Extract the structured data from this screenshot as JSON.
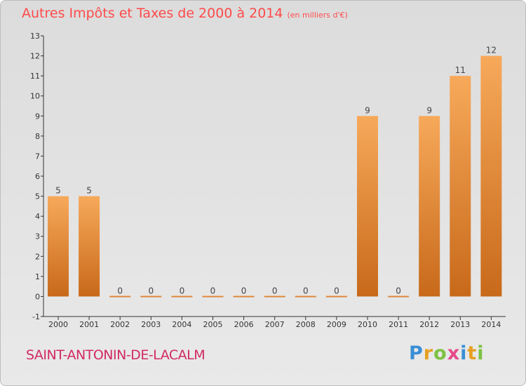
{
  "chart_data": {
    "type": "bar",
    "title": "Autres Impôts et Taxes de 2000 à 2014",
    "unit": "(en milliers d'€)",
    "categories": [
      "2000",
      "2001",
      "2002",
      "2003",
      "2004",
      "2005",
      "2006",
      "2007",
      "2008",
      "2009",
      "2010",
      "2011",
      "2012",
      "2013",
      "2014"
    ],
    "values": [
      5,
      5,
      0,
      0,
      0,
      0,
      0,
      0,
      0,
      0,
      9,
      0,
      9,
      11,
      12
    ],
    "data_labels": [
      "5",
      "5",
      "0",
      "0",
      "0",
      "0",
      "0",
      "0",
      "0",
      "0",
      "9",
      "0",
      "9",
      "11",
      "12"
    ],
    "ylim": [
      -1,
      13
    ],
    "yticks": [
      "-1",
      "0",
      "1",
      "2",
      "3",
      "4",
      "5",
      "6",
      "7",
      "8",
      "9",
      "10",
      "11",
      "12",
      "13"
    ],
    "grid": false,
    "colors": {
      "bar_light": "#f7a95a",
      "bar_dark": "#c8691a",
      "axis": "#333333"
    }
  },
  "footer": {
    "commune": "SAINT-ANTONIN-DE-LACALM",
    "logo_letters": [
      "P",
      "r",
      "o",
      "x",
      "i",
      "t",
      "i"
    ],
    "logo_colors": [
      "#3a8fd6",
      "#e6a020",
      "#7cc242",
      "#e64a8a",
      "#3a8fd6",
      "#e6a020",
      "#7cc242"
    ]
  }
}
